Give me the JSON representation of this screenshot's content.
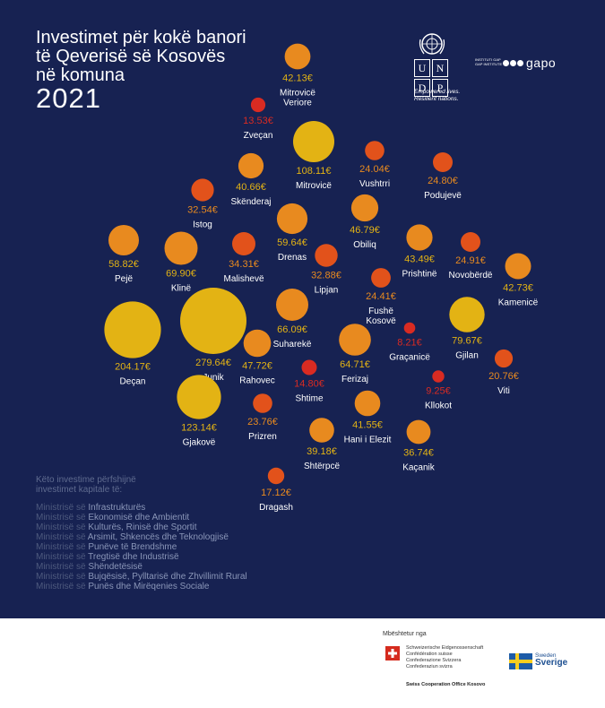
{
  "title": {
    "line1": "Investimet për kokë banori",
    "line2": "të Qeverisë së Kosovës",
    "line3": "në komuna",
    "year": "2021"
  },
  "undp": {
    "letters": [
      "U",
      "N",
      "D",
      "P"
    ],
    "tagline1": "Empowered lives.",
    "tagline2": "Resilient nations."
  },
  "gap": {
    "small1": "INSTITUTI GAP",
    "small2": "GAP INSTITUTE",
    "logo": "gapo"
  },
  "colors": {
    "background": "#172252",
    "high": "#e3b314",
    "mid": "#e88a1f",
    "low": "#e2521b",
    "lowest": "#d92b22"
  },
  "chart_data": {
    "type": "bubble",
    "currency": "€",
    "points": [
      {
        "municipality": "Mitrovicë Veriore",
        "value": 42.13,
        "label": "42.13€",
        "name_lines": [
          "Mitrovicë",
          "Veriore"
        ]
      },
      {
        "municipality": "Zveçan",
        "value": 13.53,
        "label": "13.53€",
        "name_lines": [
          "Zveçan"
        ]
      },
      {
        "municipality": "Mitrovicë",
        "value": 108.11,
        "label": "108.11€",
        "name_lines": [
          "Mitrovicë"
        ]
      },
      {
        "municipality": "Vushtrri",
        "value": 24.04,
        "label": "24.04€",
        "name_lines": [
          "Vushtrri"
        ]
      },
      {
        "municipality": "Podujevë",
        "value": 24.8,
        "label": "24.80€",
        "name_lines": [
          "Podujevë"
        ]
      },
      {
        "municipality": "Skënderaj",
        "value": 40.66,
        "label": "40.66€",
        "name_lines": [
          "Skënderaj"
        ]
      },
      {
        "municipality": "Istog",
        "value": 32.54,
        "label": "32.54€",
        "name_lines": [
          "Istog"
        ]
      },
      {
        "municipality": "Drenas",
        "value": 59.64,
        "label": "59.64€",
        "name_lines": [
          "Drenas"
        ]
      },
      {
        "municipality": "Obiliq",
        "value": 46.79,
        "label": "46.79€",
        "name_lines": [
          "Obiliq"
        ]
      },
      {
        "municipality": "Pejë",
        "value": 58.82,
        "label": "58.82€",
        "name_lines": [
          "Pejë"
        ]
      },
      {
        "municipality": "Klinë",
        "value": 69.9,
        "label": "69.90€",
        "name_lines": [
          "Klinë"
        ]
      },
      {
        "municipality": "Malishevë",
        "value": 34.31,
        "label": "34.31€",
        "name_lines": [
          "Malishevë"
        ]
      },
      {
        "municipality": "Prishtinë",
        "value": 43.49,
        "label": "43.49€",
        "name_lines": [
          "Prishtinë"
        ]
      },
      {
        "municipality": "Novobërdë",
        "value": 24.91,
        "label": "24.91€",
        "name_lines": [
          "Novobërdë"
        ]
      },
      {
        "municipality": "Kamenicë",
        "value": 42.73,
        "label": "42.73€",
        "name_lines": [
          "Kamenicë"
        ]
      },
      {
        "municipality": "Lipjan",
        "value": 32.88,
        "label": "32.88€",
        "name_lines": [
          "Lipjan"
        ]
      },
      {
        "municipality": "Fushë Kosovë",
        "value": 24.41,
        "label": "24.41€",
        "name_lines": [
          "Fushë",
          "Kosovë"
        ]
      },
      {
        "municipality": "Suharekë",
        "value": 66.09,
        "label": "66.09€",
        "name_lines": [
          "Suharekë"
        ]
      },
      {
        "municipality": "Deçan",
        "value": 204.17,
        "label": "204.17€",
        "name_lines": [
          "Deçan"
        ]
      },
      {
        "municipality": "Junik",
        "value": 279.64,
        "label": "279.64€",
        "name_lines": [
          "Junik"
        ]
      },
      {
        "municipality": "Rahovec",
        "value": 47.72,
        "label": "47.72€",
        "name_lines": [
          "Rahovec"
        ]
      },
      {
        "municipality": "Ferizaj",
        "value": 64.71,
        "label": "64.71€",
        "name_lines": [
          "Ferizaj"
        ]
      },
      {
        "municipality": "Graçanicë",
        "value": 8.21,
        "label": "8.21€",
        "name_lines": [
          "Graçanicë"
        ]
      },
      {
        "municipality": "Gjilan",
        "value": 79.67,
        "label": "79.67€",
        "name_lines": [
          "Gjilan"
        ]
      },
      {
        "municipality": "Shtime",
        "value": 14.8,
        "label": "14.80€",
        "name_lines": [
          "Shtime"
        ]
      },
      {
        "municipality": "Viti",
        "value": 20.76,
        "label": "20.76€",
        "name_lines": [
          "Viti"
        ]
      },
      {
        "municipality": "Kllokot",
        "value": 9.25,
        "label": "9.25€",
        "name_lines": [
          "Kllokot"
        ]
      },
      {
        "municipality": "Gjakovë",
        "value": 123.14,
        "label": "123.14€",
        "name_lines": [
          "Gjakovë"
        ]
      },
      {
        "municipality": "Prizren",
        "value": 23.76,
        "label": "23.76€",
        "name_lines": [
          "Prizren"
        ]
      },
      {
        "municipality": "Hani i Elezit",
        "value": 41.55,
        "label": "41.55€",
        "name_lines": [
          "Hani i Elezit"
        ]
      },
      {
        "municipality": "Shtërpcë",
        "value": 39.18,
        "label": "39.18€",
        "name_lines": [
          "Shtërpcë"
        ]
      },
      {
        "municipality": "Kaçanik",
        "value": 36.74,
        "label": "36.74€",
        "name_lines": [
          "Kaçanik"
        ]
      },
      {
        "municipality": "Dragash",
        "value": 17.12,
        "label": "17.12€",
        "name_lines": [
          "Dragash"
        ]
      }
    ]
  },
  "note": {
    "intro1": "Këto investime përfshijnë",
    "intro2": "investimet kapitale të:",
    "ministries": [
      {
        "prefix": "Ministrisë së ",
        "name": "Infrastrukturës"
      },
      {
        "prefix": "Ministrisë së ",
        "name": "Ekonomisë dhe Ambientit"
      },
      {
        "prefix": "Ministrisë së ",
        "name": "Kulturës, Rinisë dhe Sportit"
      },
      {
        "prefix": "Ministrisë së ",
        "name": "Arsimit, Shkencës dhe Teknologjisë"
      },
      {
        "prefix": "Ministrisë së ",
        "name": "Punëve të Brendshme"
      },
      {
        "prefix": "Ministrisë së ",
        "name": "Tregtisë dhe Industrisë"
      },
      {
        "prefix": "Ministrisë së ",
        "name": "Shëndetësisë"
      },
      {
        "prefix": "Ministrisë së ",
        "name": "Bujqësisë, Pylltarisë dhe Zhvillimit Rural"
      },
      {
        "prefix": "Ministrisë së ",
        "name": "Punës dhe Mirëqenies Sociale"
      }
    ]
  },
  "footer": {
    "supported_by": "Mbështetur nga",
    "swiss_lines": [
      "Schweizerische Eidgenossenschaft",
      "Confédération suisse",
      "Confederazione Svizzera",
      "Confederaziun svizra"
    ],
    "swiss_office": "Swiss Cooperation Office Kosovo",
    "sweden_small": "Sweden",
    "sweden_big": "Sverige"
  }
}
